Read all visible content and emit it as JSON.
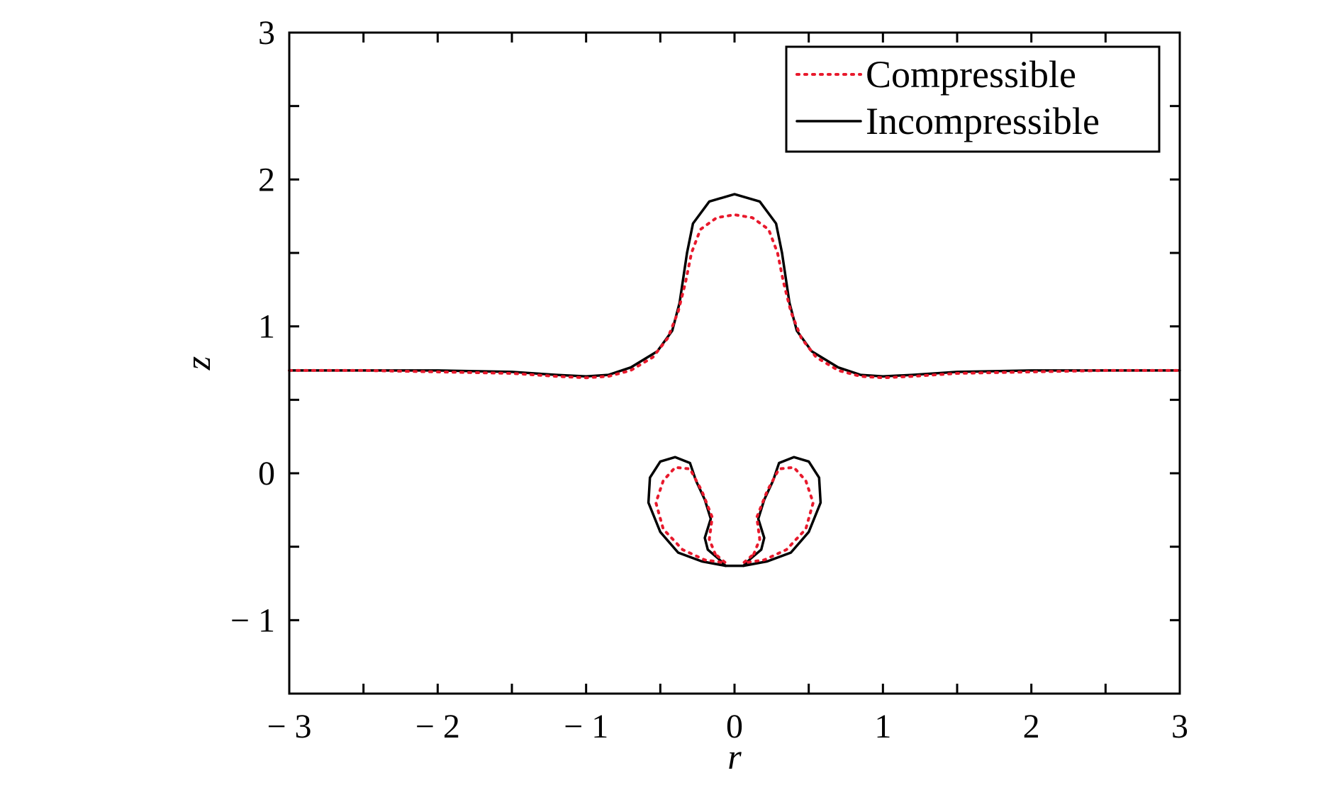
{
  "chart_data": {
    "type": "line",
    "title": "",
    "xlabel": "r",
    "ylabel": "z",
    "xlim": [
      -3,
      3
    ],
    "ylim": [
      -1.5,
      3
    ],
    "x_ticks": [
      -3,
      -2,
      -1,
      0,
      1,
      2,
      3
    ],
    "x_tick_labels": [
      "− 3",
      "− 2",
      "− 1",
      "0",
      "1",
      "2",
      "3"
    ],
    "y_ticks": [
      -1,
      0,
      1,
      2,
      3
    ],
    "y_tick_labels": [
      "− 1",
      "0",
      "1",
      "2",
      "3"
    ],
    "grid": false,
    "legend_position": "top-right",
    "series": [
      {
        "name": "Compressible",
        "color": "#e8192c",
        "style": "dotted",
        "curves": [
          [
            [
              -3,
              0.7
            ],
            [
              -2.5,
              0.7
            ],
            [
              -2,
              0.69
            ],
            [
              -1.5,
              0.68
            ],
            [
              -1.2,
              0.66
            ],
            [
              -1,
              0.65
            ],
            [
              -0.85,
              0.66
            ],
            [
              -0.7,
              0.7
            ],
            [
              -0.55,
              0.79
            ],
            [
              -0.45,
              0.92
            ],
            [
              -0.38,
              1.1
            ],
            [
              -0.33,
              1.3
            ],
            [
              -0.29,
              1.5
            ],
            [
              -0.23,
              1.66
            ],
            [
              -0.12,
              1.74
            ],
            [
              0,
              1.76
            ],
            [
              0.12,
              1.74
            ],
            [
              0.23,
              1.66
            ],
            [
              0.29,
              1.5
            ],
            [
              0.33,
              1.3
            ],
            [
              0.38,
              1.1
            ],
            [
              0.45,
              0.92
            ],
            [
              0.55,
              0.79
            ],
            [
              0.7,
              0.7
            ],
            [
              0.85,
              0.66
            ],
            [
              1,
              0.65
            ],
            [
              1.2,
              0.66
            ],
            [
              1.5,
              0.68
            ],
            [
              2,
              0.69
            ],
            [
              2.5,
              0.7
            ],
            [
              3,
              0.7
            ]
          ],
          [
            [
              -0.13,
              -0.55
            ],
            [
              -0.17,
              -0.45
            ],
            [
              -0.15,
              -0.3
            ],
            [
              -0.22,
              -0.12
            ],
            [
              -0.3,
              0.03
            ],
            [
              -0.4,
              0.04
            ],
            [
              -0.48,
              -0.05
            ],
            [
              -0.53,
              -0.2
            ],
            [
              -0.48,
              -0.38
            ],
            [
              -0.35,
              -0.52
            ],
            [
              -0.2,
              -0.59
            ],
            [
              -0.06,
              -0.61
            ],
            [
              -0.13,
              -0.55
            ]
          ],
          [
            [
              0.13,
              -0.55
            ],
            [
              0.17,
              -0.45
            ],
            [
              0.15,
              -0.3
            ],
            [
              0.22,
              -0.12
            ],
            [
              0.3,
              0.03
            ],
            [
              0.4,
              0.04
            ],
            [
              0.48,
              -0.05
            ],
            [
              0.53,
              -0.2
            ],
            [
              0.48,
              -0.38
            ],
            [
              0.35,
              -0.52
            ],
            [
              0.2,
              -0.59
            ],
            [
              0.06,
              -0.61
            ],
            [
              0.13,
              -0.55
            ]
          ]
        ]
      },
      {
        "name": "Incompressible",
        "color": "#000000",
        "style": "solid",
        "curves": [
          [
            [
              -3,
              0.7
            ],
            [
              -2.5,
              0.7
            ],
            [
              -2,
              0.7
            ],
            [
              -1.5,
              0.69
            ],
            [
              -1.2,
              0.67
            ],
            [
              -1,
              0.66
            ],
            [
              -0.85,
              0.67
            ],
            [
              -0.7,
              0.72
            ],
            [
              -0.52,
              0.83
            ],
            [
              -0.42,
              0.97
            ],
            [
              -0.37,
              1.16
            ],
            [
              -0.32,
              1.5
            ],
            [
              -0.28,
              1.7
            ],
            [
              -0.17,
              1.85
            ],
            [
              0,
              1.9
            ],
            [
              0.17,
              1.85
            ],
            [
              0.28,
              1.7
            ],
            [
              0.32,
              1.5
            ],
            [
              0.37,
              1.16
            ],
            [
              0.42,
              0.97
            ],
            [
              0.52,
              0.83
            ],
            [
              0.7,
              0.72
            ],
            [
              0.85,
              0.67
            ],
            [
              1,
              0.66
            ],
            [
              1.2,
              0.67
            ],
            [
              1.5,
              0.69
            ],
            [
              2,
              0.7
            ],
            [
              2.5,
              0.7
            ],
            [
              3,
              0.7
            ]
          ],
          [
            [
              -0.06,
              -0.63
            ],
            [
              -0.22,
              -0.6
            ],
            [
              -0.38,
              -0.54
            ],
            [
              -0.5,
              -0.4
            ],
            [
              -0.58,
              -0.2
            ],
            [
              -0.57,
              -0.03
            ],
            [
              -0.5,
              0.08
            ],
            [
              -0.4,
              0.11
            ],
            [
              -0.3,
              0.07
            ],
            [
              -0.26,
              -0.05
            ],
            [
              -0.2,
              -0.18
            ],
            [
              -0.16,
              -0.31
            ],
            [
              -0.2,
              -0.44
            ],
            [
              -0.18,
              -0.52
            ],
            [
              -0.11,
              -0.58
            ],
            [
              -0.06,
              -0.63
            ]
          ],
          [
            [
              0.06,
              -0.63
            ],
            [
              0.22,
              -0.6
            ],
            [
              0.38,
              -0.54
            ],
            [
              0.5,
              -0.4
            ],
            [
              0.58,
              -0.2
            ],
            [
              0.57,
              -0.03
            ],
            [
              0.5,
              0.08
            ],
            [
              0.4,
              0.11
            ],
            [
              0.3,
              0.07
            ],
            [
              0.26,
              -0.05
            ],
            [
              0.2,
              -0.18
            ],
            [
              0.16,
              -0.31
            ],
            [
              0.2,
              -0.44
            ],
            [
              0.18,
              -0.52
            ],
            [
              0.11,
              -0.58
            ],
            [
              0.06,
              -0.63
            ]
          ],
          [
            [
              -0.06,
              -0.63
            ],
            [
              0.06,
              -0.63
            ]
          ]
        ]
      }
    ]
  }
}
